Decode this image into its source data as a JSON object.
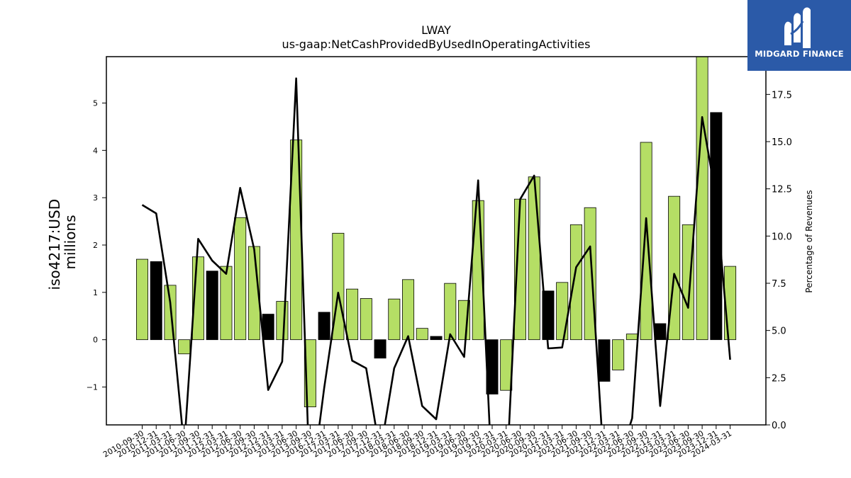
{
  "chart_data": {
    "type": "bar",
    "title": "LWAY",
    "subtitle": "us-gaap:NetCashProvidedByUsedInOperatingActivities",
    "ylabel": "iso4217:USD millions",
    "ylabel_lines": [
      "iso4217:USD",
      "millions"
    ],
    "y2label": "Percentage of Revenues",
    "ylim": [
      -1.8,
      5.98
    ],
    "y2lim": [
      0,
      19.5
    ],
    "yticks": [
      -1,
      0,
      1,
      2,
      3,
      4,
      5
    ],
    "y2ticks": [
      0.0,
      2.5,
      5.0,
      7.5,
      10.0,
      12.5,
      15.0,
      17.5
    ],
    "categories": [
      "2010-09-30",
      "2010-12-31",
      "2011-03-31",
      "2011-06-30",
      "2011-09-30",
      "2011-12-31",
      "2012-03-31",
      "2012-06-30",
      "2012-09-30",
      "2012-12-31",
      "2013-03-31",
      "2013-06-30",
      "2013-09-30",
      "2016-12-31",
      "2017-03-31",
      "2017-06-30",
      "2017-09-30",
      "2017-12-31",
      "2018-03-31",
      "2018-06-30",
      "2018-09-30",
      "2018-12-31",
      "2019-03-31",
      "2019-06-30",
      "2019-09-30",
      "2019-12-31",
      "2020-03-31",
      "2020-06-30",
      "2020-09-30",
      "2020-12-31",
      "2021-03-31",
      "2021-06-30",
      "2021-09-30",
      "2021-12-31",
      "2022-03-31",
      "2022-06-30",
      "2022-09-30",
      "2022-12-31",
      "2023-03-31",
      "2023-06-30",
      "2023-09-30",
      "2023-12-31",
      "2024-03-31"
    ],
    "values": [
      1.7,
      1.65,
      1.15,
      -0.3,
      1.75,
      1.45,
      1.55,
      2.58,
      1.97,
      0.54,
      0.81,
      4.22,
      -1.42,
      0.58,
      2.25,
      1.07,
      0.87,
      -0.39,
      0.86,
      1.27,
      0.24,
      0.07,
      1.19,
      0.83,
      2.94,
      -1.15,
      -1.07,
      2.97,
      3.44,
      1.03,
      1.21,
      2.43,
      2.79,
      -0.88,
      -0.64,
      0.12,
      4.17,
      0.34,
      3.03,
      2.43,
      5.98,
      4.8,
      1.55
    ],
    "bar_colors": [
      "green",
      "black",
      "green",
      "green",
      "green",
      "black",
      "green",
      "green",
      "green",
      "black",
      "green",
      "green",
      "green",
      "black",
      "green",
      "green",
      "green",
      "black",
      "green",
      "green",
      "green",
      "black",
      "green",
      "green",
      "green",
      "black",
      "green",
      "green",
      "green",
      "black",
      "green",
      "green",
      "green",
      "black",
      "green",
      "green",
      "green",
      "black",
      "green",
      "green",
      "green",
      "black",
      "green"
    ],
    "line_values": [
      11.65,
      11.2,
      6.5,
      -1.2,
      9.85,
      8.7,
      8.0,
      12.55,
      9.3,
      1.85,
      3.35,
      18.35,
      -3.8,
      1.95,
      7.0,
      3.4,
      3.0,
      -1.5,
      3.0,
      4.7,
      1.0,
      0.3,
      4.8,
      3.6,
      12.95,
      -3.0,
      -3.2,
      11.95,
      13.2,
      4.05,
      4.1,
      8.35,
      9.45,
      -2.3,
      -2.0,
      0.35,
      10.95,
      1.0,
      8.0,
      6.2,
      16.3,
      12.0,
      3.45
    ],
    "colors": {
      "green": "#b5de65",
      "black": "#000000",
      "line": "#000000"
    },
    "grid": false
  },
  "logo": {
    "text": "MIDGARD FINANCE",
    "icon": "midgard-logo-icon",
    "color": "#2b5aa8"
  }
}
